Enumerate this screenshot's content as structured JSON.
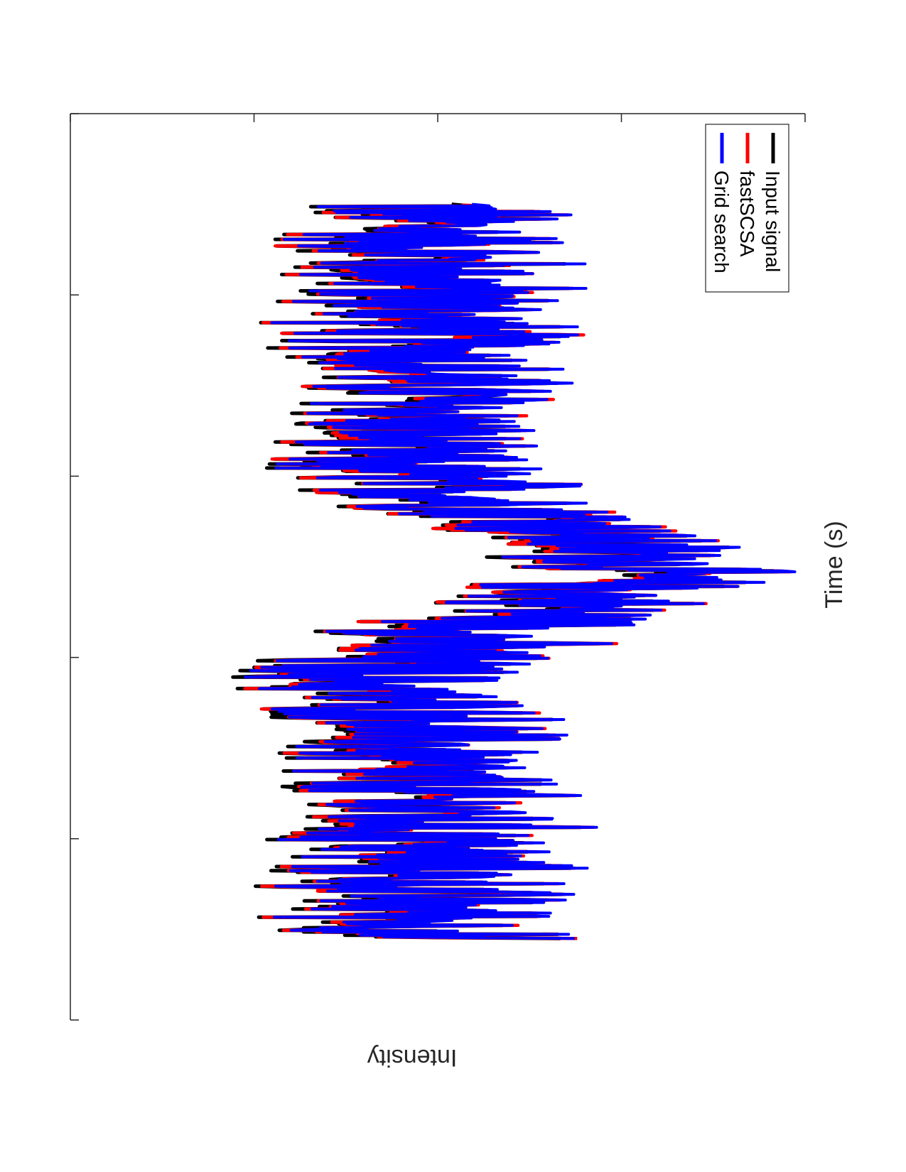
{
  "chart_data": {
    "type": "line",
    "orientation": "rotated 90 degrees clockwise",
    "title": "",
    "xlabel": "Time (s)",
    "ylabel": "Intensity",
    "x_tick_count": 6,
    "y_tick_count": 5,
    "x_tick_labels": [],
    "y_tick_labels": [],
    "x_range": [
      0,
      1
    ],
    "y_range": [
      0,
      1
    ],
    "grid": false,
    "legend": {
      "placement": "top-left (in rotated view)",
      "entries": [
        "Input signal",
        "fastSCSA",
        "Grid search"
      ]
    },
    "series": [
      {
        "name": "Input signal",
        "color": "#000000"
      },
      {
        "name": "fastSCSA",
        "color": "#ff0000"
      },
      {
        "name": "Grid search",
        "color": "#0000ff"
      }
    ],
    "envelope_note": "noisy oscillating signal; x and y values are normalized fractions of the axis ranges (no numeric tick labels shown)",
    "envelope": {
      "x": [
        0.1,
        0.17,
        0.25,
        0.33,
        0.37,
        0.4,
        0.45,
        0.5,
        0.55,
        0.6,
        0.63,
        0.67,
        0.72,
        0.78,
        0.85,
        0.91
      ],
      "upper": [
        0.7,
        0.72,
        0.71,
        0.7,
        0.62,
        0.68,
        0.88,
        0.99,
        0.88,
        0.68,
        0.6,
        0.7,
        0.68,
        0.72,
        0.7,
        0.7
      ],
      "lower": [
        0.24,
        0.23,
        0.24,
        0.25,
        0.2,
        0.18,
        0.42,
        0.56,
        0.42,
        0.16,
        0.18,
        0.25,
        0.2,
        0.22,
        0.22,
        0.24
      ]
    }
  }
}
